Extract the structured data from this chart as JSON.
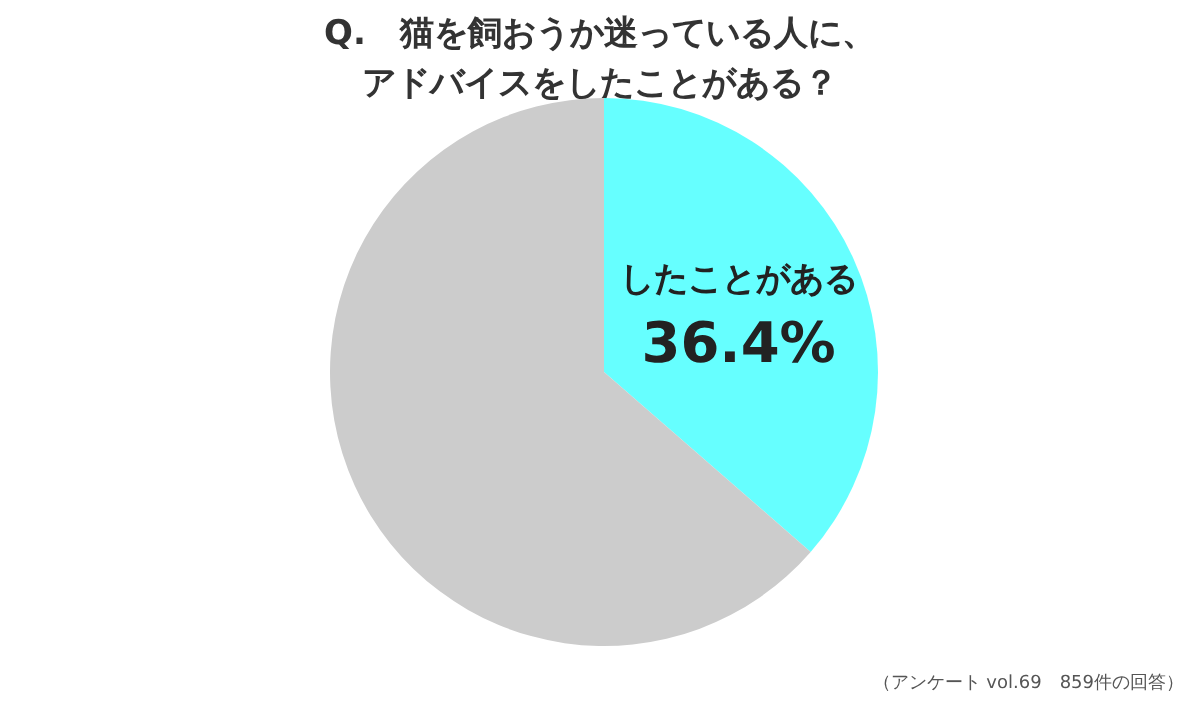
{
  "chart_data": {
    "type": "pie",
    "title": "Q.　猫を飼おうか迷っている人に、アドバイスをしたことがある？",
    "categories": [
      "したことがある",
      null
    ],
    "values": [
      36.4,
      63.6
    ],
    "colors": [
      "#66ffff",
      "#cccccc"
    ],
    "value_labels": [
      "36.4%",
      null
    ],
    "annotations": [
      "（アンケート vol.69　859件の回答）"
    ]
  }
}
